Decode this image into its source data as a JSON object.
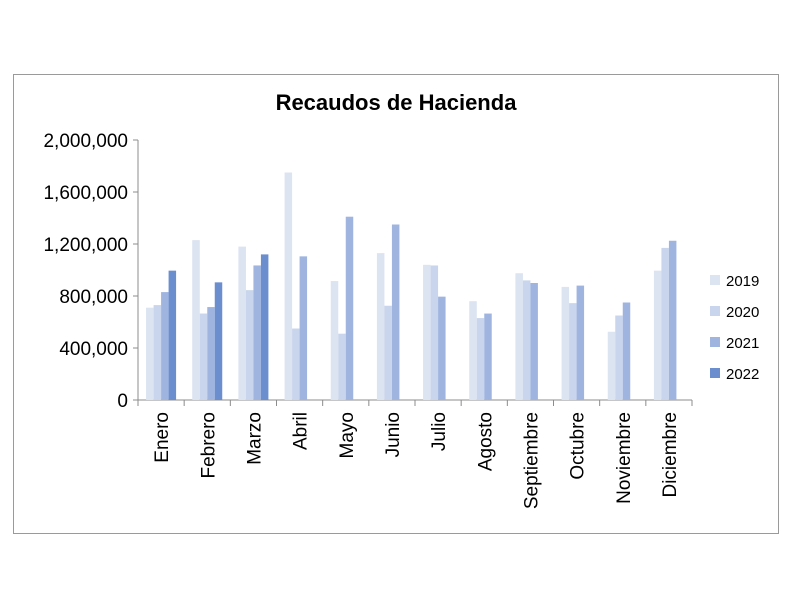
{
  "chart_data": {
    "type": "bar",
    "title": "Recaudos de Hacienda",
    "categories": [
      "Enero",
      "Febrero",
      "Marzo",
      "Abril",
      "Mayo",
      "Junio",
      "Julio",
      "Agosto",
      "Septiembre",
      "Octubre",
      "Noviembre",
      "Diciembre"
    ],
    "series": [
      {
        "name": "2019",
        "color": "#dce3f1",
        "values": [
          710000,
          1230000,
          1180000,
          1750000,
          915000,
          1130000,
          1040000,
          760000,
          975000,
          870000,
          525000,
          995000
        ]
      },
      {
        "name": "2020",
        "color": "#c9d5ec",
        "values": [
          730000,
          665000,
          845000,
          550000,
          510000,
          725000,
          1035000,
          630000,
          920000,
          745000,
          650000,
          1170000
        ]
      },
      {
        "name": "2021",
        "color": "#9fb5e0",
        "values": [
          830000,
          715000,
          1035000,
          1105000,
          1410000,
          1350000,
          795000,
          665000,
          900000,
          880000,
          750000,
          1225000
        ]
      },
      {
        "name": "2022",
        "color": "#6b8ecf",
        "values": [
          995000,
          905000,
          1120000,
          null,
          null,
          null,
          null,
          null,
          null,
          null,
          null,
          null
        ]
      }
    ],
    "yticks": [
      "0",
      "400,000",
      "800,000",
      "1,200,000",
      "1,600,000",
      "2,000,000"
    ],
    "ylim": [
      0,
      2000000
    ],
    "legend_position": "right",
    "grid": false
  }
}
